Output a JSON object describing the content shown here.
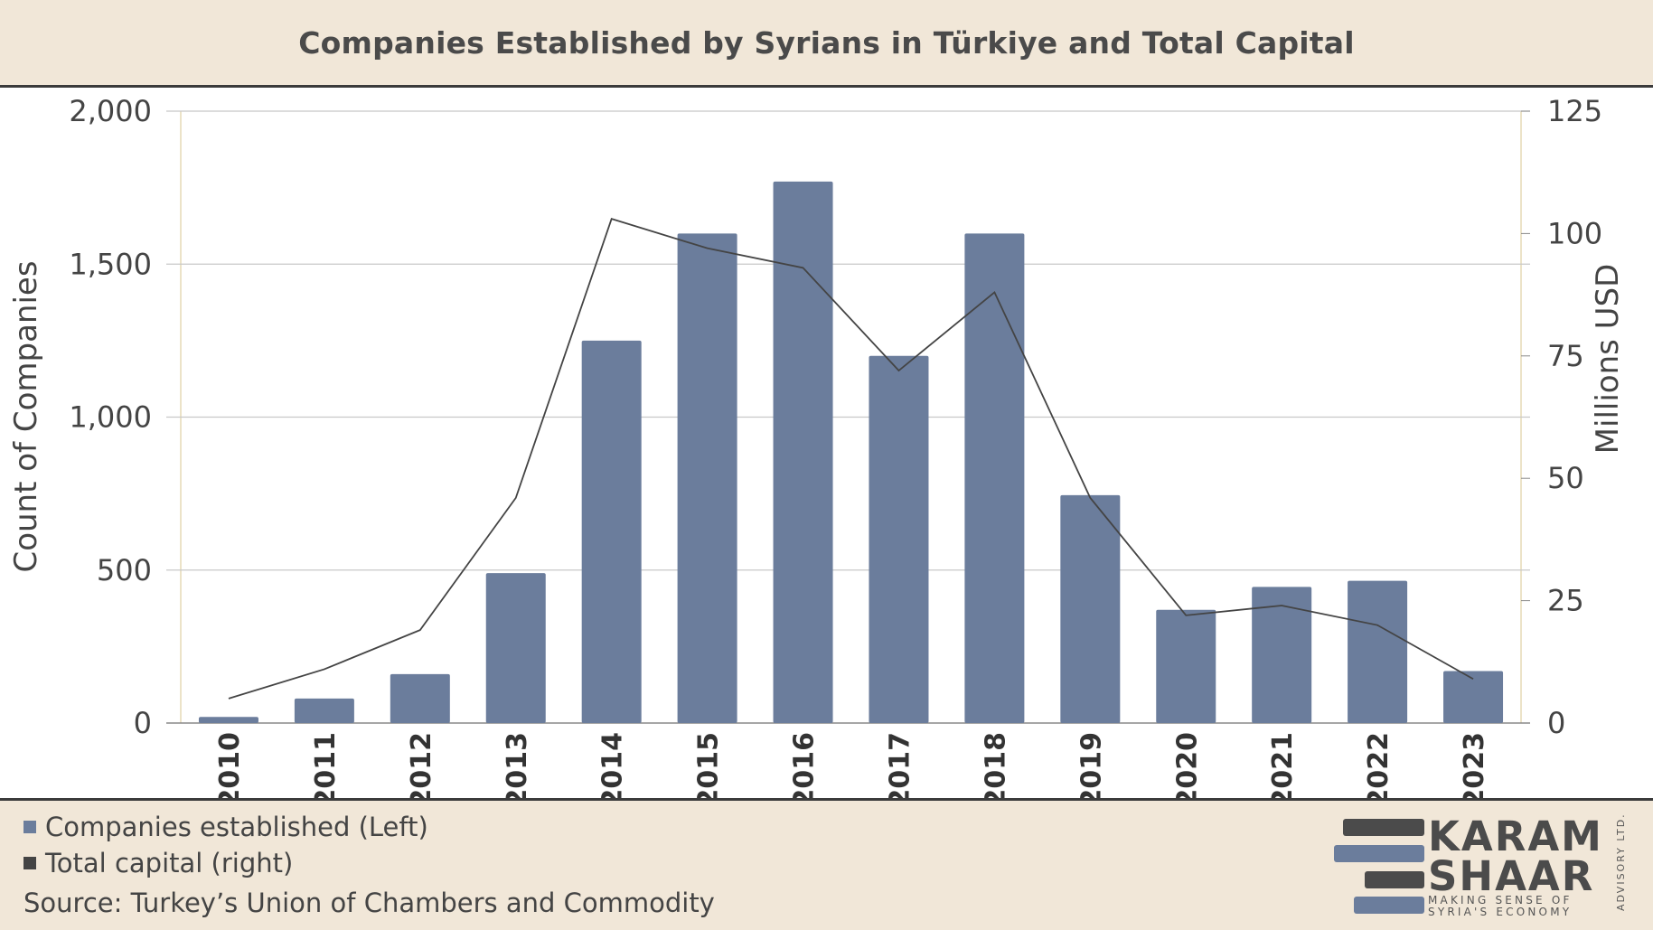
{
  "title": "Companies Established by Syrians in Türkiye and Total Capital",
  "chart_data": {
    "type": "bar",
    "categories": [
      "2010",
      "2011",
      "2012",
      "2013",
      "2014",
      "2015",
      "2016",
      "2017",
      "2018",
      "2019",
      "2020",
      "2021",
      "2022",
      "2023"
    ],
    "series": [
      {
        "name": "Companies established (Left)",
        "type": "bar",
        "axis": "left",
        "color": "#6b7d9c",
        "values": [
          20,
          80,
          160,
          490,
          1250,
          1600,
          1770,
          1200,
          1600,
          745,
          370,
          445,
          465,
          170
        ]
      },
      {
        "name": "Total capital (right)",
        "type": "line",
        "axis": "right",
        "color": "#444444",
        "values": [
          5,
          11,
          19,
          46,
          103,
          97,
          93,
          72,
          88,
          46,
          22,
          24,
          20,
          9
        ]
      }
    ],
    "ylabel": "Count of Companies",
    "ylim": [
      0,
      2000
    ],
    "yticks": [
      "0",
      "500",
      "1,000",
      "1,500",
      "2,000"
    ],
    "y2label": "Millions USD",
    "y2lim": [
      0,
      125
    ],
    "y2ticks": [
      "0",
      "25",
      "50",
      "75",
      "100",
      "125"
    ],
    "grid": true
  },
  "legend": {
    "bar_label": "Companies established (Left)",
    "line_label": "Total capital (right)"
  },
  "source": "Source: Turkey’s Union of Chambers and Commodity",
  "logo": {
    "line1": "KARAM",
    "line2": "SHAAR",
    "tag1": "MAKING SENSE OF",
    "tag2": "SYRIA'S ECONOMY",
    "vertical": "ADVISORY LTD."
  },
  "colors": {
    "background": "#f1e7d8",
    "bar": "#6b7d9c",
    "line": "#444444",
    "logo_dark": "#4b4b4b",
    "logo_blue": "#6b7d9c"
  }
}
